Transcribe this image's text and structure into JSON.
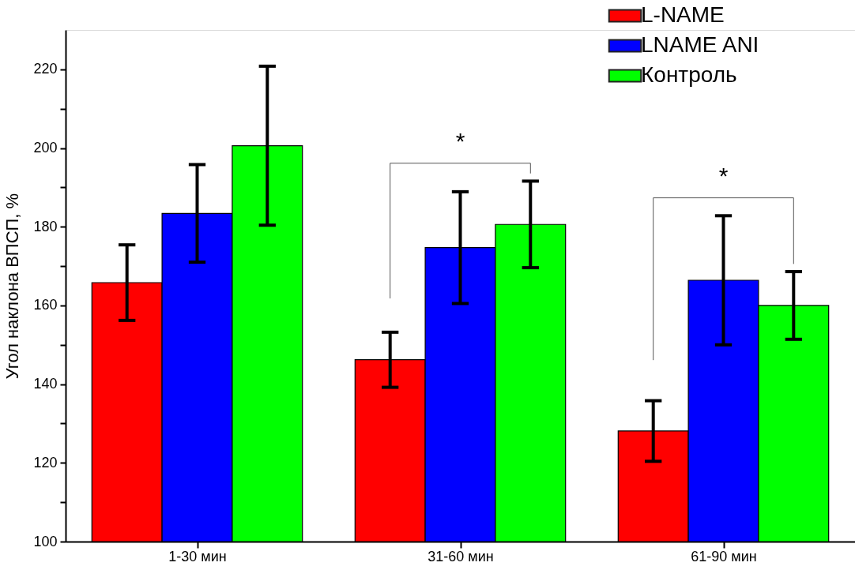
{
  "chart_data": {
    "type": "bar",
    "ylabel": "Угол наклона ВПСП, %",
    "categories": [
      "1-30 мин",
      "31-60 мин",
      "61-90 мин"
    ],
    "series": [
      {
        "name": "L-NAME",
        "color": "#ff0000",
        "values": [
          165.8,
          146.2,
          128.1
        ],
        "errors": [
          9.6,
          7.0,
          7.7
        ]
      },
      {
        "name": "LNAME ANI",
        "color": "#0000ff",
        "values": [
          183.4,
          174.7,
          166.4
        ],
        "errors": [
          12.4,
          14.2,
          16.4
        ]
      },
      {
        "name": "Контроль",
        "color": "#00ff00",
        "values": [
          200.6,
          180.6,
          160.0
        ],
        "errors": [
          20.2,
          11.0,
          8.6
        ]
      }
    ],
    "ylim": [
      100,
      230
    ],
    "yticks": [
      100,
      {
        "value": 110,
        "label": null
      },
      120,
      {
        "value": 130,
        "label": null
      },
      140,
      {
        "value": 150,
        "label": null
      },
      160,
      {
        "value": 170,
        "label": null
      },
      180,
      {
        "value": 190,
        "label": null
      },
      200,
      {
        "value": 210,
        "label": null
      },
      220
    ],
    "annotations": [
      "*",
      "*"
    ],
    "grid": false,
    "legend": "top right"
  }
}
